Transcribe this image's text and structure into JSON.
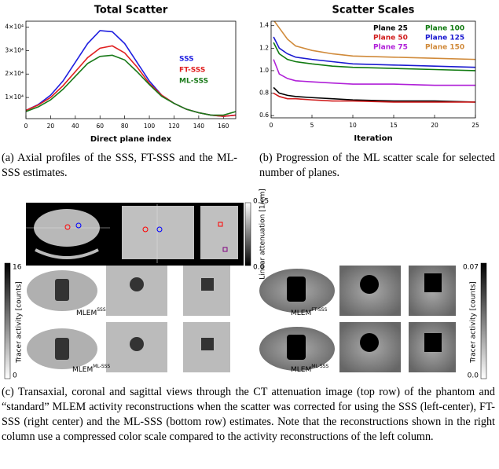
{
  "chart_data": [
    {
      "type": "line",
      "title": "Total Scatter",
      "x_label": "Direct plane index",
      "x": [
        0,
        10,
        20,
        30,
        40,
        50,
        60,
        70,
        80,
        90,
        100,
        110,
        120,
        130,
        140,
        150,
        160,
        170
      ],
      "xlim": [
        0,
        170
      ],
      "xticks": [
        0,
        20,
        40,
        60,
        80,
        100,
        120,
        140,
        160
      ],
      "ylim": [
        1000,
        42500
      ],
      "yticks": [
        {
          "value": 10000,
          "label": "1×10⁴"
        },
        {
          "value": 20000,
          "label": "2×10⁴"
        },
        {
          "value": 30000,
          "label": "3×10⁴"
        },
        {
          "value": 40000,
          "label": "4×10⁴"
        }
      ],
      "legend": "right",
      "series": [
        {
          "name": "SSS",
          "color": "#1f1fe0",
          "values": [
            4500,
            7000,
            11000,
            17000,
            25000,
            33000,
            38500,
            38000,
            33000,
            25000,
            17000,
            11000,
            7500,
            5000,
            3500,
            2500,
            2000,
            2500
          ]
        },
        {
          "name": "FT-SSS",
          "color": "#e01f1f",
          "values": [
            4500,
            6800,
            10000,
            15000,
            21000,
            27000,
            31000,
            32000,
            29000,
            23000,
            16000,
            11000,
            7500,
            5000,
            3500,
            2500,
            2000,
            2500
          ]
        },
        {
          "name": "ML-SSS",
          "color": "#1a7a1a",
          "values": [
            4000,
            6000,
            9000,
            13500,
            19000,
            24500,
            27500,
            28000,
            26000,
            21000,
            15500,
            10500,
            7500,
            5000,
            3500,
            2500,
            2500,
            4000
          ]
        }
      ]
    },
    {
      "type": "line",
      "title": "Scatter Scales",
      "x_label": "Iteration",
      "x": [
        0.3,
        1,
        2,
        3,
        5,
        7.5,
        10,
        15,
        20,
        25
      ],
      "xlim": [
        0,
        25
      ],
      "xticks": [
        0,
        5,
        10,
        15,
        20,
        25
      ],
      "ylim": [
        0.58,
        1.44
      ],
      "yticks": [
        0.6,
        0.8,
        {
          "value": 1,
          "label": "1.0"
        },
        1.2,
        1.4
      ],
      "legend": "upper right",
      "series": [
        {
          "name": "Plane 25",
          "color": "#000000",
          "values": [
            0.85,
            0.8,
            0.78,
            0.77,
            0.76,
            0.75,
            0.74,
            0.73,
            0.73,
            0.72
          ]
        },
        {
          "name": "Plane 50",
          "color": "#d01c1c",
          "values": [
            0.8,
            0.77,
            0.75,
            0.75,
            0.74,
            0.73,
            0.73,
            0.72,
            0.72,
            0.72
          ]
        },
        {
          "name": "Plane 75",
          "color": "#b020d8",
          "values": [
            1.1,
            0.97,
            0.93,
            0.91,
            0.9,
            0.89,
            0.88,
            0.88,
            0.87,
            0.87
          ]
        },
        {
          "name": "Plane 100",
          "color": "#107a10",
          "values": [
            1.25,
            1.15,
            1.1,
            1.08,
            1.06,
            1.04,
            1.03,
            1.02,
            1.01,
            1.0
          ]
        },
        {
          "name": "Plane 125",
          "color": "#1a1ad0",
          "values": [
            1.3,
            1.2,
            1.15,
            1.12,
            1.1,
            1.08,
            1.06,
            1.05,
            1.04,
            1.03
          ]
        },
        {
          "name": "Plane 150",
          "color": "#d08a3a",
          "values": [
            1.45,
            1.38,
            1.28,
            1.22,
            1.18,
            1.15,
            1.13,
            1.12,
            1.11,
            1.1
          ]
        }
      ]
    }
  ],
  "captions": {
    "a": "(a) Axial profiles of the SSS, FT-SSS and the ML-SSS estimates.",
    "b": "(b) Progression of the ML scatter scale for selected number of planes.",
    "c": "(c) Transaxial, coronal and sagittal views through the CT attenuation image (top row) of the phantom and “standard” MLEM activity reconstructions when the scatter was corrected for using the SSS (left-center), FT-SSS (right center) and the ML-SSS (bottom row) estimates. Note that the reconstructions shown in the right column use a compressed color scale compared to the activity reconstructions of the left column."
  },
  "images": {
    "attenuation_bar": {
      "max": "0.15",
      "min": "0.0",
      "label": "Linear attenuation [1/cm]"
    },
    "activity_bar_left": {
      "max": "16",
      "min": "0",
      "label": "Tracer activity [counts]"
    },
    "activity_bar_right": {
      "max": "0.07",
      "min": "0.0",
      "label": "Tracer activity [counts]"
    },
    "panel_labels": [
      {
        "base": "MLEM",
        "sup": "SSS"
      },
      {
        "base": "MLEM",
        "sup": "ML-SSS"
      },
      {
        "base": "MLEM",
        "sup": "FT-SSS"
      },
      {
        "base": "MLEM",
        "sup": "ML-SSS"
      }
    ]
  }
}
